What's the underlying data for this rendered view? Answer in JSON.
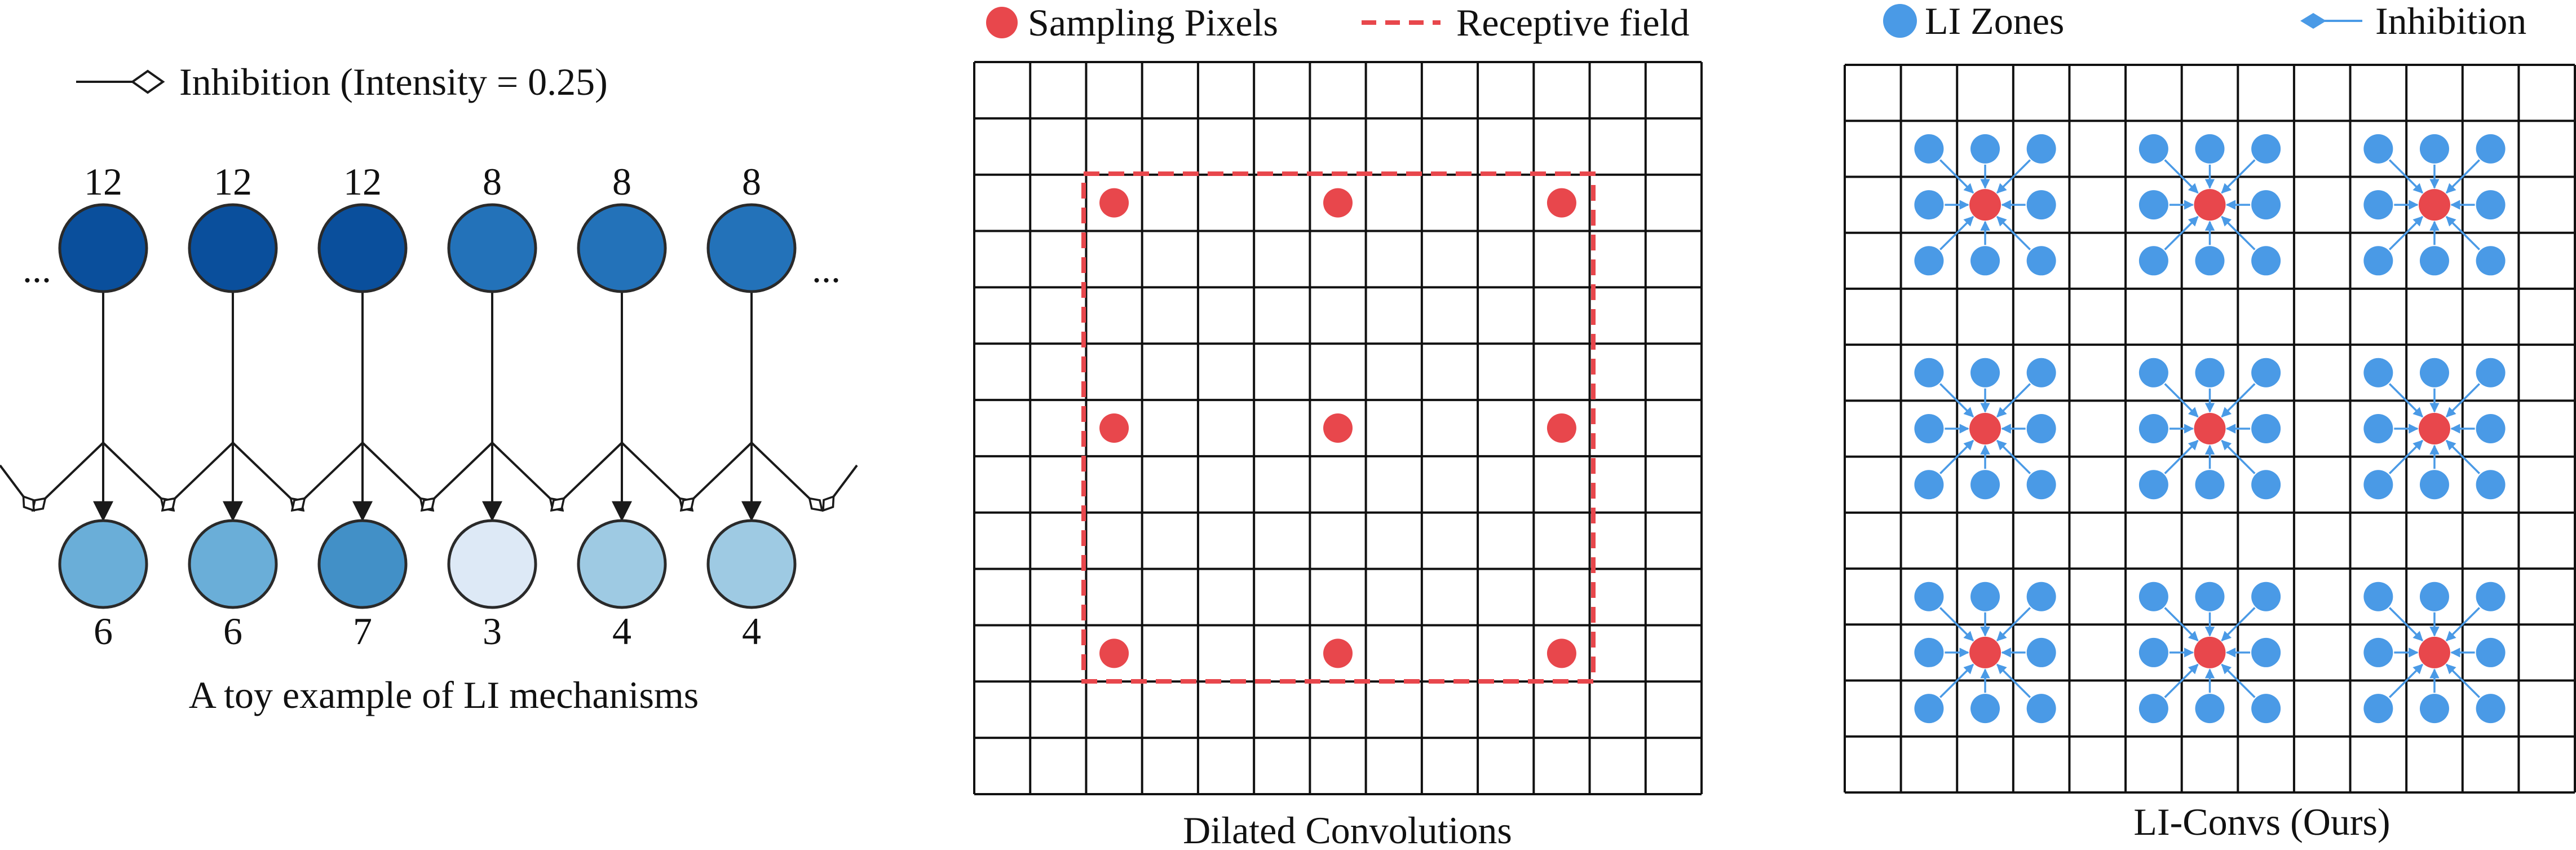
{
  "toy_panel": {
    "legend_label": "Inhibition (Intensity = 0.25)",
    "caption": "A toy example of LI mechanisms",
    "ellipsis": "...",
    "top_values": [
      "12",
      "12",
      "12",
      "8",
      "8",
      "8"
    ],
    "bottom_values": [
      "6",
      "6",
      "7",
      "3",
      "4",
      "4"
    ],
    "colors": {
      "top_dark": "#0a4f9c",
      "top_mid": "#2372b9",
      "bottom": [
        "#6aaed8",
        "#6aaed8",
        "#4290c7",
        "#dde9f6",
        "#9ecae3",
        "#9ecae3"
      ],
      "stroke": "#2a2a2a"
    }
  },
  "dilated_panel": {
    "legend_sampling": "Sampling Pixels",
    "legend_receptive": "Receptive field",
    "caption": "Dilated Convolutions",
    "grid_cells": 13,
    "colors": {
      "sampling": "#e8474c",
      "receptive": "#e8474c"
    }
  },
  "li_panel": {
    "legend_zones": "LI Zones",
    "legend_inhibition": "Inhibition",
    "caption": "LI-Convs (Ours)",
    "grid_cells": 13,
    "colors": {
      "zone": "#4a9ae6",
      "center": "#e8474c",
      "arrow": "#4a9ae6"
    }
  }
}
